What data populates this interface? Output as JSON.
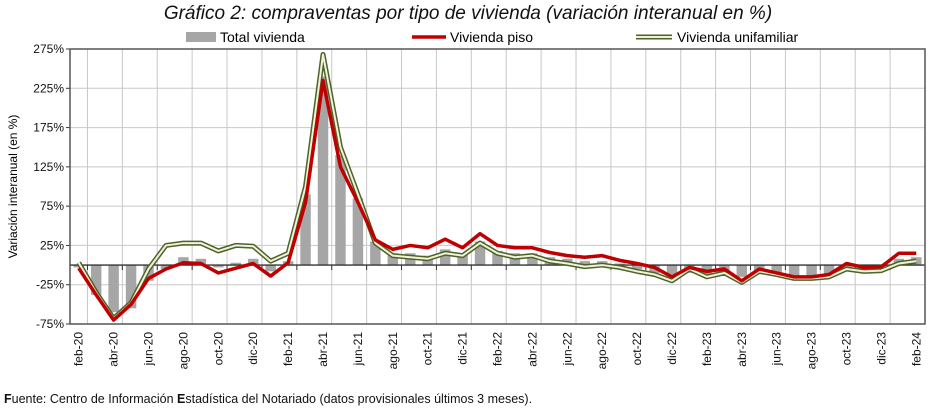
{
  "chart_data": {
    "type": "bar",
    "title": "Gráfico 2: compraventas por tipo de vivienda (variación interanual en %)",
    "ylabel": "Variación interanual (en %)",
    "xlabel": "",
    "ylim": [
      -75,
      275
    ],
    "yticks": [
      "275%",
      "225%",
      "175%",
      "125%",
      "75%",
      "25%",
      "-25%",
      "-75%"
    ],
    "ytick_values": [
      275,
      225,
      175,
      125,
      75,
      25,
      -25,
      -75
    ],
    "grid": true,
    "legend_position": "top",
    "categories": [
      "feb-20",
      "mar-20",
      "abr-20",
      "may-20",
      "jun-20",
      "jul-20",
      "ago-20",
      "sep-20",
      "oct-20",
      "nov-20",
      "dic-20",
      "ene-21",
      "feb-21",
      "mar-21",
      "abr-21",
      "may-21",
      "jun-21",
      "jul-21",
      "ago-21",
      "sep-21",
      "oct-21",
      "nov-21",
      "dic-21",
      "ene-22",
      "feb-22",
      "mar-22",
      "abr-22",
      "may-22",
      "jun-22",
      "jul-22",
      "ago-22",
      "sep-22",
      "oct-22",
      "nov-22",
      "dic-22",
      "ene-23",
      "feb-23",
      "mar-23",
      "abr-23",
      "may-23",
      "jun-23",
      "jul-23",
      "ago-23",
      "sep-23",
      "oct-23",
      "nov-23",
      "dic-23",
      "ene-24",
      "feb-24"
    ],
    "xtick_labels": [
      "feb-20",
      "abr-20",
      "jun-20",
      "ago-20",
      "oct-20",
      "dic-20",
      "feb-21",
      "abr-21",
      "jun-21",
      "ago-21",
      "oct-21",
      "dic-21",
      "feb-22",
      "abr-22",
      "jun-22",
      "ago-22",
      "oct-22",
      "dic-22",
      "feb-23",
      "abr-23",
      "jun-23",
      "ago-23",
      "oct-23",
      "dic-23",
      "feb-24"
    ],
    "series": [
      {
        "name": "Total vivienda",
        "kind": "bar",
        "color": "#a6a6a6",
        "values": [
          -3,
          -38,
          -60,
          -55,
          -20,
          -5,
          10,
          8,
          -3,
          3,
          8,
          -8,
          5,
          90,
          240,
          140,
          85,
          30,
          15,
          15,
          12,
          20,
          15,
          30,
          18,
          15,
          15,
          10,
          8,
          5,
          5,
          2,
          -5,
          -10,
          -12,
          -10,
          -12,
          -10,
          -15,
          -10,
          -12,
          -15,
          -15,
          -12,
          -5,
          -5,
          -5,
          8,
          10
        ]
      },
      {
        "name": "Vivienda piso",
        "kind": "line",
        "color": "#c00000",
        "values": [
          -4,
          -38,
          -70,
          -50,
          -17,
          -5,
          3,
          2,
          -10,
          -4,
          2,
          -14,
          3,
          80,
          235,
          125,
          80,
          32,
          20,
          25,
          22,
          33,
          22,
          40,
          25,
          22,
          22,
          16,
          12,
          10,
          12,
          6,
          2,
          -3,
          -15,
          -3,
          -8,
          -5,
          -20,
          -5,
          -10,
          -15,
          -15,
          -12,
          2,
          -3,
          -2,
          15,
          15
        ]
      },
      {
        "name": "Vivienda unifamiliar",
        "kind": "double-line",
        "color": "#4f6228",
        "values": [
          3,
          -35,
          -68,
          -48,
          -5,
          25,
          28,
          28,
          18,
          25,
          24,
          5,
          15,
          100,
          268,
          150,
          90,
          28,
          12,
          10,
          8,
          15,
          12,
          28,
          15,
          10,
          12,
          5,
          2,
          -2,
          0,
          -3,
          -8,
          -12,
          -20,
          -5,
          -15,
          -10,
          -22,
          -8,
          -12,
          -17,
          -17,
          -15,
          -5,
          -8,
          -7,
          2,
          5
        ]
      }
    ]
  },
  "footer": {
    "prefix": "F",
    "text": "uente: Centro de Información ",
    "bold2": "E",
    "text2": "stadística del Notariado (datos provisionales últimos 3 meses)."
  }
}
